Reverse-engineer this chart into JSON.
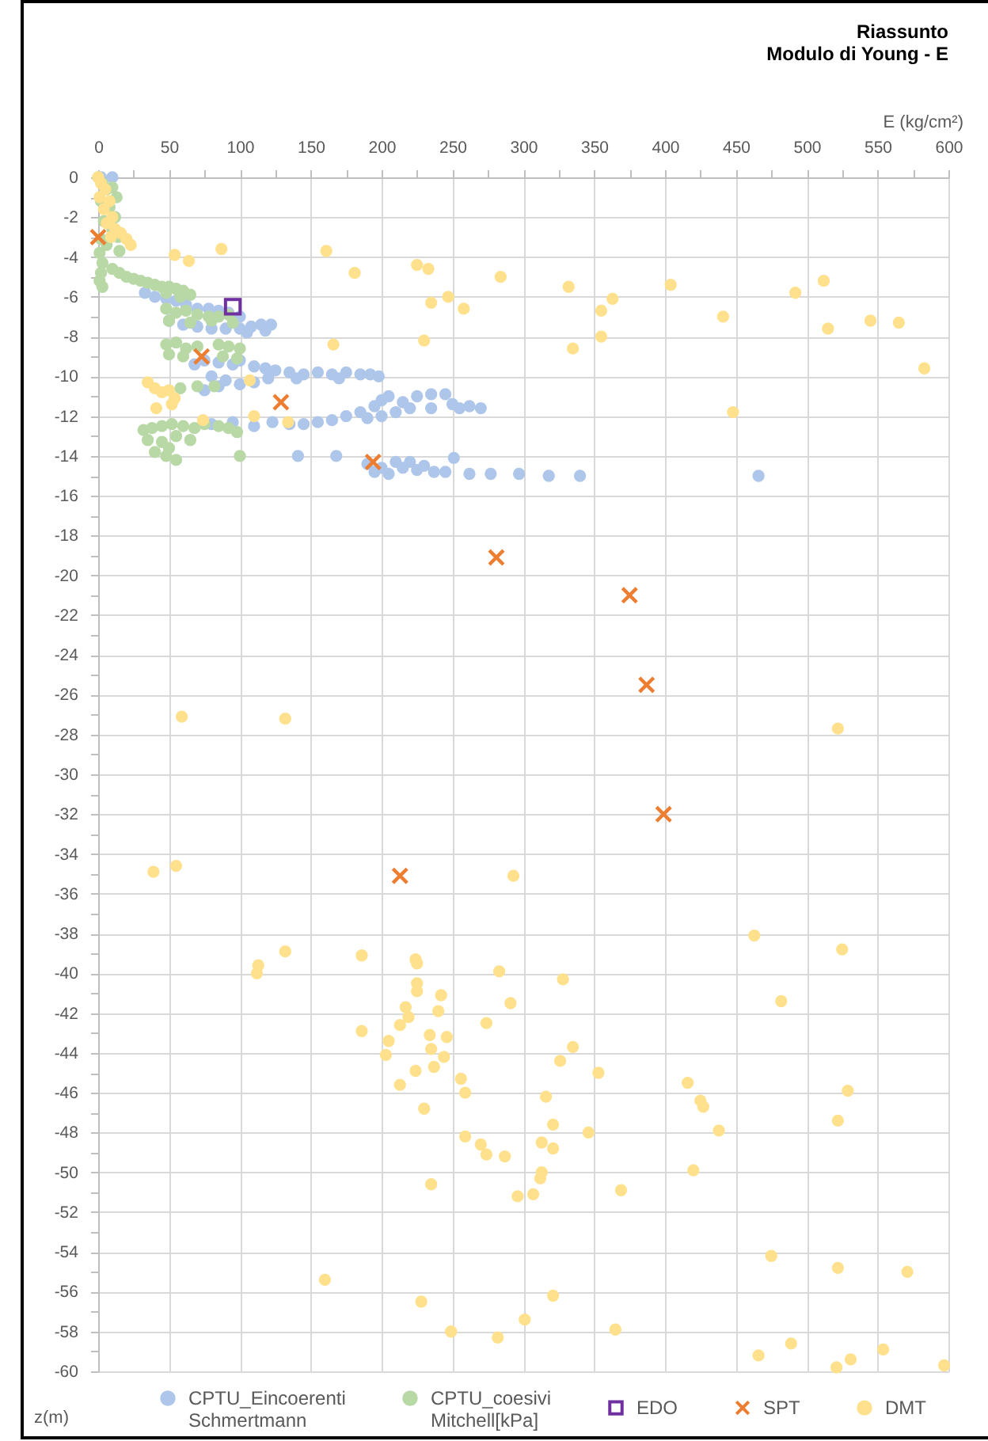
{
  "chart_data": {
    "type": "scatter",
    "title": "Riassunto",
    "subtitle": "Modulo di Young - E",
    "xlabel": "E (kg/cm²)",
    "ylabel": "z(m)",
    "xlim": [
      0,
      600
    ],
    "xticks": [
      0,
      {
        "value": 25,
        "label": null
      },
      50,
      {
        "value": 75,
        "label": null
      },
      100,
      {
        "value": 125,
        "label": null
      },
      150,
      {
        "value": 175,
        "label": null
      },
      200,
      {
        "value": 225,
        "label": null
      },
      250,
      {
        "value": 275,
        "label": null
      },
      300,
      {
        "value": 325,
        "label": null
      },
      350,
      {
        "value": 375,
        "label": null
      },
      400,
      {
        "value": 425,
        "label": null
      },
      450,
      {
        "value": 475,
        "label": null
      },
      500,
      {
        "value": 525,
        "label": null
      },
      550,
      {
        "value": 575,
        "label": null
      },
      600
    ],
    "ylim": [
      -60,
      0
    ],
    "yticks": [
      0,
      {
        "value": -1,
        "label": null
      },
      -2,
      {
        "value": -3,
        "label": null
      },
      -4,
      {
        "value": -5,
        "label": null
      },
      -6,
      {
        "value": -7,
        "label": null
      },
      -8,
      {
        "value": -9,
        "label": null
      },
      -10,
      {
        "value": -11,
        "label": null
      },
      -12,
      {
        "value": -13,
        "label": null
      },
      -14,
      {
        "value": -15,
        "label": null
      },
      -16,
      {
        "value": -17,
        "label": null
      },
      -18,
      {
        "value": -19,
        "label": null
      },
      -20,
      {
        "value": -21,
        "label": null
      },
      -22,
      {
        "value": -23,
        "label": null
      },
      -24,
      {
        "value": -25,
        "label": null
      },
      -26,
      {
        "value": -27,
        "label": null
      },
      -28,
      {
        "value": -29,
        "label": null
      },
      -30,
      {
        "value": -31,
        "label": null
      },
      -32,
      {
        "value": -33,
        "label": null
      },
      -34,
      {
        "value": -35,
        "label": null
      },
      -36,
      {
        "value": -37,
        "label": null
      },
      -38,
      {
        "value": -39,
        "label": null
      },
      -40,
      {
        "value": -41,
        "label": null
      },
      -42,
      {
        "value": -43,
        "label": null
      },
      -44,
      {
        "value": -45,
        "label": null
      },
      -46,
      {
        "value": -47,
        "label": null
      },
      -48,
      {
        "value": -49,
        "label": null
      },
      -50,
      {
        "value": -51,
        "label": null
      },
      -52,
      {
        "value": -53,
        "label": null
      },
      -54,
      {
        "value": -55,
        "label": null
      },
      -56,
      {
        "value": -57,
        "label": null
      },
      -58,
      {
        "value": -59,
        "label": null
      },
      -60
    ],
    "grid": true,
    "legend": "bottom",
    "marker": "circle",
    "series": [
      {
        "name": "CPTU_Eincoerenti Schmertmann",
        "color": "#aec6ea",
        "x": [
          2,
          10,
          33,
          40,
          48,
          55,
          62,
          70,
          78,
          85,
          92,
          100,
          50,
          60,
          70,
          80,
          90,
          100,
          108,
          115,
          122,
          118,
          105,
          68,
          75,
          85,
          95,
          100,
          110,
          118,
          125,
          135,
          145,
          155,
          165,
          175,
          185,
          192,
          198,
          80,
          90,
          100,
          110,
          120,
          140,
          170,
          75,
          85,
          80,
          95,
          110,
          123,
          135,
          145,
          155,
          165,
          175,
          185,
          195,
          200,
          205,
          215,
          225,
          235,
          245,
          250,
          255,
          262,
          270,
          200,
          210,
          220,
          235,
          190,
          141,
          168,
          190,
          195,
          200,
          205,
          210,
          215,
          220,
          225,
          230,
          237,
          245,
          251,
          262,
          277,
          297,
          318,
          340,
          466
        ],
        "values": [
          0,
          0,
          -5.8,
          -6.0,
          -6.1,
          -6.2,
          -6.4,
          -6.6,
          -6.6,
          -6.7,
          -6.8,
          -7.0,
          -7.2,
          -7.4,
          -7.5,
          -7.6,
          -7.6,
          -7.6,
          -7.5,
          -7.4,
          -7.4,
          -7.7,
          -7.8,
          -9.4,
          -9.2,
          -9.3,
          -9.4,
          -9.2,
          -9.5,
          -9.6,
          -9.7,
          -9.8,
          -9.9,
          -9.8,
          -9.9,
          -9.8,
          -9.9,
          -9.9,
          -10.0,
          -10.0,
          -10.2,
          -10.4,
          -10.3,
          -10.1,
          -10.1,
          -10.1,
          -10.7,
          -10.5,
          -12.4,
          -12.3,
          -12.5,
          -12.3,
          -12.4,
          -12.4,
          -12.3,
          -12.2,
          -12.0,
          -11.8,
          -11.5,
          -11.2,
          -11.0,
          -11.3,
          -11.0,
          -10.9,
          -10.9,
          -11.4,
          -11.6,
          -11.5,
          -11.6,
          -12.0,
          -11.8,
          -11.6,
          -11.6,
          -12.1,
          -14.0,
          -14.0,
          -14.4,
          -14.8,
          -14.6,
          -14.9,
          -14.3,
          -14.6,
          -14.3,
          -14.7,
          -14.5,
          -14.8,
          -14.8,
          -14.1,
          -14.9,
          -14.9,
          -14.9,
          -15.0,
          -15.0,
          -15.0
        ]
      },
      {
        "name": "CPTU_coesivi Mitchell[kPa]",
        "color": "#b8d8a6",
        "x": [
          0,
          3,
          6,
          10,
          13,
          2,
          8,
          12,
          4,
          10,
          14,
          2,
          6,
          15,
          1,
          3,
          2,
          1,
          3,
          10,
          15,
          20,
          25,
          30,
          35,
          40,
          45,
          50,
          55,
          60,
          65,
          58,
          48,
          48,
          55,
          62,
          70,
          78,
          85,
          92,
          50,
          65,
          80,
          95,
          48,
          55,
          62,
          70,
          50,
          60,
          85,
          92,
          100,
          88,
          98,
          58,
          70,
          82,
          32,
          38,
          45,
          52,
          60,
          68,
          75,
          85,
          92,
          98,
          35,
          45,
          55,
          65,
          40,
          48,
          55,
          50,
          100
        ],
        "values": [
          0,
          -0.3,
          -0.6,
          -0.5,
          -1.0,
          -1.2,
          -1.5,
          -2.0,
          -2.2,
          -2.6,
          -3.0,
          -3.1,
          -3.4,
          -3.7,
          -3.8,
          -4.3,
          -4.8,
          -5.2,
          -5.5,
          -4.6,
          -4.8,
          -5.0,
          -5.1,
          -5.2,
          -5.3,
          -5.4,
          -5.5,
          -5.5,
          -5.6,
          -5.7,
          -5.9,
          -6.0,
          -5.8,
          -6.6,
          -6.8,
          -6.7,
          -6.9,
          -7.0,
          -7.0,
          -6.9,
          -7.2,
          -7.3,
          -7.2,
          -7.3,
          -8.4,
          -8.3,
          -8.6,
          -8.5,
          -8.9,
          -9.0,
          -8.4,
          -8.5,
          -8.6,
          -9.0,
          -9.1,
          -10.6,
          -10.5,
          -10.5,
          -12.7,
          -12.6,
          -12.5,
          -12.4,
          -12.5,
          -12.6,
          -12.4,
          -12.5,
          -12.6,
          -12.8,
          -13.2,
          -13.3,
          -13.0,
          -13.2,
          -13.8,
          -14.0,
          -14.2,
          -13.6,
          -14.0
        ]
      },
      {
        "name": "EDO",
        "color": "#7030a0",
        "marker": "square",
        "x": [
          95
        ],
        "values": [
          -6.5
        ]
      },
      {
        "name": "SPT",
        "color": "#ed7d31",
        "marker": "cross",
        "x": [
          0,
          73,
          129,
          194,
          281,
          375,
          387,
          399,
          213
        ],
        "values": [
          -3.0,
          -9.0,
          -11.3,
          -14.3,
          -19.1,
          -21.0,
          -25.5,
          -32.0,
          -35.1
        ]
      },
      {
        "name": "DMT",
        "color": "#ffe08c",
        "x": [
          0,
          2,
          5,
          1,
          8,
          4,
          10,
          6,
          12,
          16,
          20,
          23,
          9,
          54,
          64,
          87,
          161,
          181,
          225,
          233,
          284,
          235,
          247,
          258,
          230,
          166,
          332,
          355,
          363,
          404,
          355,
          335,
          441,
          448,
          492,
          512,
          515,
          545,
          565,
          583,
          107,
          110,
          74,
          134,
          35,
          40,
          45,
          50,
          41,
          54,
          52,
          59,
          132,
          522,
          39,
          55,
          293,
          113,
          112,
          132,
          186,
          224,
          225,
          225,
          225,
          283,
          328,
          463,
          525,
          242,
          291,
          482,
          217,
          240,
          219,
          213,
          186,
          274,
          234,
          246,
          205,
          235,
          203,
          244,
          335,
          326,
          224,
          237,
          256,
          353,
          416,
          213,
          259,
          316,
          529,
          425,
          427,
          230,
          522,
          321,
          438,
          346,
          259,
          270,
          274,
          313,
          321,
          287,
          313,
          312,
          420,
          235,
          296,
          307,
          369,
          475,
          522,
          571,
          160,
          228,
          321,
          301,
          249,
          282,
          365,
          466,
          489,
          521,
          531,
          554,
          597
        ],
        "values": [
          0,
          -0.3,
          -0.6,
          -1.0,
          -1.2,
          -1.6,
          -2.0,
          -2.3,
          -2.6,
          -2.8,
          -3.1,
          -3.4,
          -3.0,
          -3.9,
          -4.2,
          -3.6,
          -3.7,
          -4.8,
          -4.4,
          -4.6,
          -5.0,
          -6.3,
          -6.0,
          -6.6,
          -8.2,
          -8.4,
          -5.5,
          -6.7,
          -6.1,
          -5.4,
          -8.0,
          -8.6,
          -7.0,
          -11.8,
          -5.8,
          -5.2,
          -7.6,
          -7.2,
          -7.3,
          -9.6,
          -10.2,
          -12.0,
          -12.2,
          -12.3,
          -10.3,
          -10.6,
          -10.8,
          -10.7,
          -11.6,
          -11.1,
          -11.4,
          -27.1,
          -27.2,
          -27.7,
          -34.9,
          -34.6,
          -35.1,
          -39.6,
          -40.0,
          -38.9,
          -39.1,
          -39.3,
          -39.5,
          -40.5,
          -40.9,
          -39.9,
          -40.3,
          -38.1,
          -38.8,
          -41.1,
          -41.5,
          -41.4,
          -41.7,
          -41.9,
          -42.2,
          -42.6,
          -42.9,
          -42.5,
          -43.1,
          -43.2,
          -43.4,
          -43.8,
          -44.1,
          -44.2,
          -43.7,
          -44.4,
          -44.9,
          -44.7,
          -45.3,
          -45.0,
          -45.5,
          -45.6,
          -46.0,
          -46.2,
          -45.9,
          -46.4,
          -46.7,
          -46.8,
          -47.4,
          -47.6,
          -47.9,
          -48.0,
          -48.2,
          -48.6,
          -49.1,
          -48.5,
          -48.8,
          -49.2,
          -50.0,
          -50.3,
          -49.9,
          -50.6,
          -51.2,
          -51.1,
          -50.9,
          -54.2,
          -54.8,
          -55.0,
          -55.4,
          -56.5,
          -56.2,
          -57.4,
          -58.0,
          -58.3,
          -57.9,
          -59.2,
          -58.6,
          -59.8,
          -59.4,
          -58.9,
          -59.7
        ]
      }
    ]
  }
}
